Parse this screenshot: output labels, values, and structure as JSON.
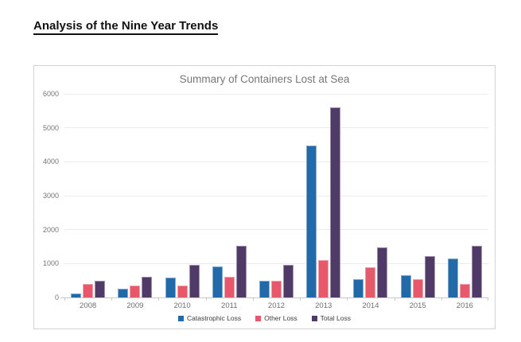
{
  "page": {
    "heading": "Analysis of the Nine Year Trends"
  },
  "chart_data": {
    "type": "bar",
    "title": "Summary of Containers Lost at Sea",
    "categories": [
      "2008",
      "2009",
      "2010",
      "2011",
      "2012",
      "2013",
      "2014",
      "2015",
      "2016"
    ],
    "series": [
      {
        "name": "Catastrophic Loss",
        "color": "#2169A8",
        "values": [
          110,
          250,
          580,
          910,
          490,
          4470,
          550,
          660,
          1150
        ]
      },
      {
        "name": "Other Loss",
        "color": "#E6586A",
        "values": [
          400,
          350,
          350,
          600,
          500,
          1110,
          900,
          550,
          390
        ]
      },
      {
        "name": "Total Loss",
        "color": "#503A68",
        "values": [
          500,
          600,
          950,
          1520,
          960,
          5600,
          1470,
          1220,
          1530
        ]
      }
    ],
    "xlabel": "",
    "ylabel": "",
    "ylim": [
      0,
      6000
    ],
    "yticks": [
      0,
      1000,
      2000,
      3000,
      4000,
      5000,
      6000
    ],
    "grid": true,
    "legend_position": "bottom",
    "colors": {
      "grid": "#ebebeb",
      "axis": "#c9c9c9",
      "axis_label": "#757575",
      "title": "#777777",
      "legend_text": "#3d3d3d",
      "card_border": "#d3d3d3"
    }
  }
}
